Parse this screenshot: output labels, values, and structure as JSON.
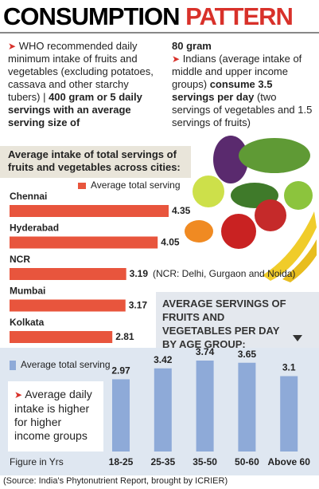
{
  "header": {
    "title": [
      "CONSUMPTION",
      "PATTERN"
    ]
  },
  "left_column": [
    "WHO recommended daily minimum intake of fruits and vegetables (excluding potatoes, cassava and other starchy tubers) | ",
    "400 gram or 5 daily servings with an average serving size of"
  ],
  "right_column": [
    "80 gram",
    "Indians (average intake of middle and upper income groups) ",
    "consume 3.5 servings per day",
    " (two servings of vegetables and 1.5 servings of fruits)"
  ],
  "chart_data": [
    {
      "type": "bar",
      "orientation": "horizontal",
      "title": "Average intake of total servings of fruits and vegetables across cities:",
      "categories": [
        "Chennai",
        "Hyderabad",
        "NCR",
        "Mumbai",
        "Kolkata"
      ],
      "series": [
        {
          "name": "Average total serving",
          "color": "#e8553d",
          "values": [
            4.35,
            4.05,
            3.19,
            3.17,
            2.81
          ]
        }
      ],
      "annotations": [
        "(NCR: Delhi, Gurgaon and Noida)"
      ]
    },
    {
      "type": "bar",
      "orientation": "vertical",
      "title": "AVERAGE SERVINGS OF FRUITS AND VEGETABLES PER DAY BY AGE GROUP:",
      "categories": [
        "18-25",
        "25-35",
        "35-50",
        "50-60",
        "Above 60"
      ],
      "series": [
        {
          "name": "Average total serving",
          "color": "#8eaad8",
          "values": [
            2.97,
            3.42,
            3.74,
            3.65,
            3.1
          ]
        }
      ],
      "annotations": [
        "Average daily intake is higher for higher income groups"
      ],
      "note": "Figure in Yrs"
    }
  ],
  "source": "(Source: India's Phytonutrient Report, brought by ICRIER)"
}
